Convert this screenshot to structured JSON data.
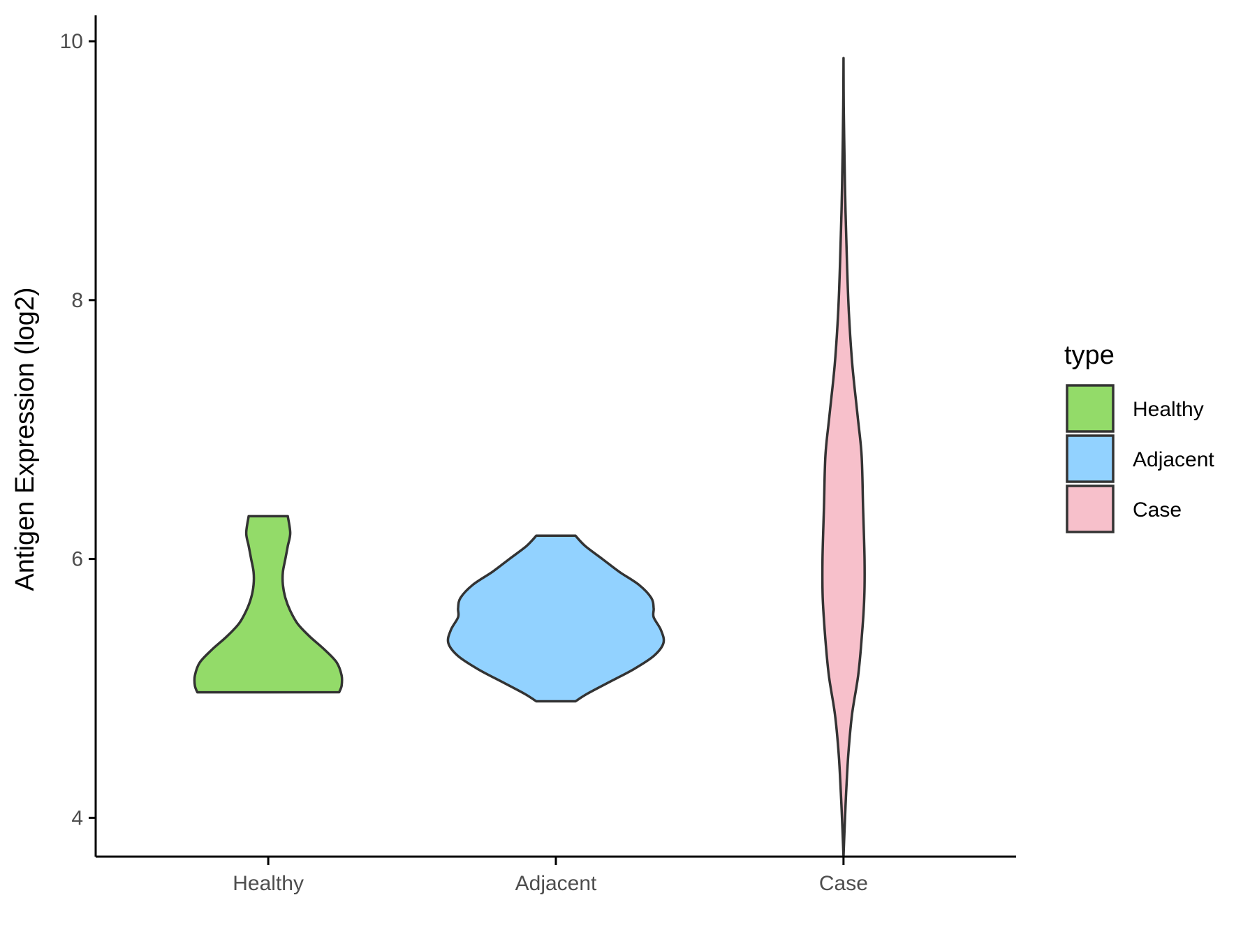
{
  "chart_data": {
    "type": "violin",
    "title": "",
    "xlabel": "",
    "ylabel": "Antigen Expression (log2)",
    "categories": [
      "Healthy",
      "Adjacent",
      "Case"
    ],
    "ylim": [
      3.7,
      10.2
    ],
    "yticks": [
      4,
      6,
      8,
      10
    ],
    "grid": false,
    "legend": {
      "title": "type",
      "position": "right",
      "entries": [
        "Healthy",
        "Adjacent",
        "Case"
      ]
    },
    "outline_color": "#333333",
    "series": [
      {
        "name": "Healthy",
        "color": "#93DB69",
        "min": 4.97,
        "max": 6.33,
        "density_profile": [
          {
            "y": 4.97,
            "half_width": 0.29
          },
          {
            "y": 5.02,
            "half_width": 0.3
          },
          {
            "y": 5.1,
            "half_width": 0.3
          },
          {
            "y": 5.2,
            "half_width": 0.28
          },
          {
            "y": 5.3,
            "half_width": 0.23
          },
          {
            "y": 5.4,
            "half_width": 0.17
          },
          {
            "y": 5.5,
            "half_width": 0.12
          },
          {
            "y": 5.6,
            "half_width": 0.09
          },
          {
            "y": 5.7,
            "half_width": 0.07
          },
          {
            "y": 5.8,
            "half_width": 0.06
          },
          {
            "y": 5.9,
            "half_width": 0.06
          },
          {
            "y": 6.0,
            "half_width": 0.07
          },
          {
            "y": 6.1,
            "half_width": 0.08
          },
          {
            "y": 6.2,
            "half_width": 0.09
          },
          {
            "y": 6.33,
            "half_width": 0.08
          }
        ]
      },
      {
        "name": "Adjacent",
        "color": "#92D2FF",
        "min": 4.9,
        "max": 6.18,
        "density_profile": [
          {
            "y": 4.9,
            "half_width": 0.08
          },
          {
            "y": 4.96,
            "half_width": 0.13
          },
          {
            "y": 5.05,
            "half_width": 0.22
          },
          {
            "y": 5.15,
            "half_width": 0.32
          },
          {
            "y": 5.25,
            "half_width": 0.4
          },
          {
            "y": 5.35,
            "half_width": 0.44
          },
          {
            "y": 5.45,
            "half_width": 0.43
          },
          {
            "y": 5.55,
            "half_width": 0.4
          },
          {
            "y": 5.62,
            "half_width": 0.4
          },
          {
            "y": 5.7,
            "half_width": 0.39
          },
          {
            "y": 5.8,
            "half_width": 0.34
          },
          {
            "y": 5.9,
            "half_width": 0.26
          },
          {
            "y": 6.0,
            "half_width": 0.19
          },
          {
            "y": 6.1,
            "half_width": 0.12
          },
          {
            "y": 6.18,
            "half_width": 0.08
          }
        ]
      },
      {
        "name": "Case",
        "color": "#F7C0CB",
        "min": 3.7,
        "max": 9.87,
        "density_profile": [
          {
            "y": 3.7,
            "half_width": 0.0
          },
          {
            "y": 3.9,
            "half_width": 0.004
          },
          {
            "y": 4.2,
            "half_width": 0.011
          },
          {
            "y": 4.5,
            "half_width": 0.02
          },
          {
            "y": 4.8,
            "half_width": 0.035
          },
          {
            "y": 5.1,
            "half_width": 0.06
          },
          {
            "y": 5.4,
            "half_width": 0.075
          },
          {
            "y": 5.7,
            "half_width": 0.085
          },
          {
            "y": 6.0,
            "half_width": 0.086
          },
          {
            "y": 6.4,
            "half_width": 0.08
          },
          {
            "y": 6.8,
            "half_width": 0.074
          },
          {
            "y": 7.1,
            "half_width": 0.058
          },
          {
            "y": 7.5,
            "half_width": 0.036
          },
          {
            "y": 7.9,
            "half_width": 0.022
          },
          {
            "y": 8.3,
            "half_width": 0.014
          },
          {
            "y": 8.7,
            "half_width": 0.008
          },
          {
            "y": 9.1,
            "half_width": 0.004
          },
          {
            "y": 9.5,
            "half_width": 0.001
          },
          {
            "y": 9.87,
            "half_width": 0.0
          }
        ]
      }
    ]
  }
}
